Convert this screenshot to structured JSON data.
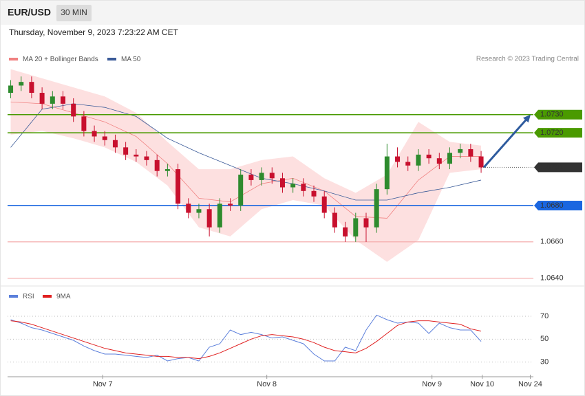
{
  "header": {
    "symbol": "EUR/USD",
    "interval": "30 MIN",
    "date": "Thursday, November 9, 2023 7:23:22 AM CET",
    "credit": "Research © 2023 Trading Central"
  },
  "chart_data": [
    {
      "type": "candlestick",
      "xlim": [
        -0.3,
        50
      ],
      "ylim": [
        1.0638,
        1.0756
      ],
      "up_color": "#2e8b2e",
      "down_color": "#c8102e",
      "open": [
        1.0742,
        1.0746,
        1.0748,
        1.0742,
        1.0736,
        1.074,
        1.0736,
        1.0729,
        1.0721,
        1.0718,
        1.0716,
        1.0712,
        1.0708,
        1.0707,
        1.0705,
        1.0699,
        1.07,
        1.0681,
        1.0676,
        1.0678,
        1.0668,
        1.0681,
        1.068,
        1.0697,
        1.0694,
        1.0698,
        1.0695,
        1.069,
        1.0692,
        1.0688,
        1.0685,
        1.0676,
        1.0668,
        1.0663,
        1.0673,
        1.0668,
        1.0689,
        1.0707,
        1.0704,
        1.0702,
        1.0708,
        1.0706,
        1.0703,
        1.0709,
        1.0711,
        1.0707
      ],
      "high": [
        1.0749,
        1.0751,
        1.0751,
        1.0745,
        1.0743,
        1.0743,
        1.0739,
        1.0732,
        1.0724,
        1.0721,
        1.0719,
        1.0715,
        1.0711,
        1.071,
        1.0708,
        1.0703,
        1.0703,
        1.0684,
        1.0681,
        1.0681,
        1.0684,
        1.0684,
        1.07,
        1.07,
        1.0701,
        1.0701,
        1.0698,
        1.0695,
        1.0695,
        1.0691,
        1.0688,
        1.0679,
        1.0671,
        1.0676,
        1.0676,
        1.0692,
        1.0714,
        1.0712,
        1.0707,
        1.0711,
        1.0711,
        1.0709,
        1.0712,
        1.0714,
        1.0714,
        1.071
      ],
      "low": [
        1.0739,
        1.0743,
        1.0739,
        1.0733,
        1.0733,
        1.0733,
        1.0726,
        1.0718,
        1.0715,
        1.0713,
        1.0709,
        1.0705,
        1.0704,
        1.0702,
        1.0696,
        1.0696,
        1.0678,
        1.0673,
        1.0673,
        1.0663,
        1.0665,
        1.0677,
        1.0677,
        1.0691,
        1.0691,
        1.0692,
        1.0687,
        1.0687,
        1.0685,
        1.0682,
        1.0673,
        1.0665,
        1.066,
        1.066,
        1.066,
        1.0665,
        1.0686,
        1.0701,
        1.0699,
        1.0699,
        1.0703,
        1.07,
        1.07,
        1.0706,
        1.0704,
        1.0698
      ],
      "close": [
        1.0746,
        1.0748,
        1.0742,
        1.0736,
        1.074,
        1.0736,
        1.0729,
        1.0721,
        1.0718,
        1.0716,
        1.0712,
        1.0708,
        1.0707,
        1.0705,
        1.0699,
        1.07,
        1.0681,
        1.0676,
        1.0678,
        1.0668,
        1.0681,
        1.068,
        1.0697,
        1.0694,
        1.0698,
        1.0695,
        1.069,
        1.0692,
        1.0688,
        1.0685,
        1.0676,
        1.0668,
        1.0663,
        1.0673,
        1.0668,
        1.0689,
        1.0707,
        1.0704,
        1.0702,
        1.0708,
        1.0706,
        1.0703,
        1.0709,
        1.0711,
        1.0707,
        1.0701
      ],
      "series": [
        {
          "name": "MA 20 + Bollinger Bands",
          "color": "#f08080",
          "band_color": "#fde0e0",
          "x": [
            0,
            3,
            6,
            9,
            12,
            15,
            18,
            21,
            24,
            27,
            30,
            33,
            36,
            39,
            42,
            45
          ],
          "values": [
            1.0737,
            1.0736,
            1.0731,
            1.0726,
            1.0718,
            1.0703,
            1.0684,
            1.0682,
            1.0692,
            1.0695,
            1.0688,
            1.0674,
            1.0673,
            1.0694,
            1.0707,
            1.0707
          ],
          "upper": [
            1.0755,
            1.075,
            1.0745,
            1.074,
            1.0731,
            1.0715,
            1.07,
            1.07,
            1.0705,
            1.0707,
            1.0695,
            1.0687,
            1.0697,
            1.0726,
            1.0715,
            1.0713
          ],
          "lower": [
            1.0719,
            1.0721,
            1.0717,
            1.0712,
            1.0704,
            1.0691,
            1.0668,
            1.0663,
            1.0678,
            1.0683,
            1.068,
            1.0661,
            1.0649,
            1.0661,
            1.0698,
            1.07
          ]
        },
        {
          "name": "MA 50",
          "color": "#3a5a98",
          "x": [
            0,
            3,
            6,
            9,
            12,
            15,
            18,
            21,
            24,
            27,
            30,
            33,
            36,
            39,
            42,
            45
          ],
          "values": [
            1.0712,
            1.0733,
            1.0736,
            1.0734,
            1.0729,
            1.0717,
            1.0709,
            1.0702,
            1.0695,
            1.0692,
            1.0688,
            1.0683,
            1.0683,
            1.0687,
            1.069,
            1.0694
          ]
        }
      ],
      "levels": [
        {
          "value": 1.073,
          "label": "1.0730",
          "color": "#4a9a00",
          "style": "box"
        },
        {
          "value": 1.072,
          "label": "1.0720",
          "color": "#4a9a00",
          "style": "box"
        },
        {
          "value": 1.0701,
          "color": "#333333",
          "style": "pivot"
        },
        {
          "value": 1.068,
          "label": "1.0680",
          "color": "#1a66e0",
          "style": "box"
        },
        {
          "value": 1.066,
          "label": "1.0660",
          "color": "#e03030",
          "style": "text"
        },
        {
          "value": 1.064,
          "label": "1.0640",
          "color": "#e03030",
          "style": "text"
        }
      ],
      "arrow_color": "#2e5b9e"
    },
    {
      "type": "line",
      "xlim": [
        -0.3,
        50
      ],
      "ylim": [
        22,
        94
      ],
      "yticks": [
        70,
        50,
        30
      ],
      "xticks": [
        {
          "value": 8.8,
          "label": "Nov 7"
        },
        {
          "value": 24.5,
          "label": "Nov 8"
        },
        {
          "value": 40.3,
          "label": "Nov 9"
        },
        {
          "value": 45.1,
          "label": "Nov 10"
        },
        {
          "value": 49.7,
          "label": "Nov 24"
        }
      ],
      "series": [
        {
          "name": "RSI",
          "color": "#5b7fdb",
          "values": [
            67,
            64,
            60,
            58,
            55,
            52,
            49,
            44,
            40,
            37,
            37,
            36,
            35,
            34,
            36,
            31,
            33,
            34,
            31,
            43,
            46,
            58,
            54,
            56,
            54,
            51,
            52,
            49,
            46,
            37,
            31,
            31,
            43,
            40,
            58,
            71,
            67,
            64,
            65,
            64,
            55,
            64,
            60,
            58,
            58,
            48
          ]
        },
        {
          "name": "9MA",
          "color": "#e02020",
          "values": [
            66,
            65,
            63,
            60,
            57,
            54,
            51,
            48,
            45,
            42,
            40,
            38,
            37,
            36,
            35,
            35,
            34,
            34,
            33,
            35,
            38,
            42,
            46,
            50,
            53,
            54,
            53,
            52,
            50,
            47,
            43,
            40,
            39,
            38,
            42,
            48,
            55,
            62,
            65,
            66,
            66,
            65,
            64,
            63,
            59,
            57
          ]
        }
      ]
    }
  ]
}
